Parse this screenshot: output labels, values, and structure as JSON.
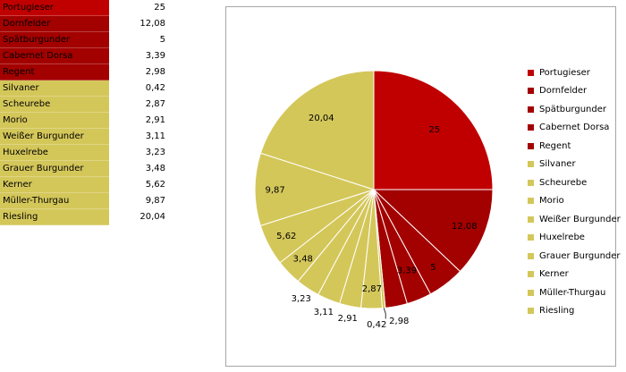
{
  "colors": {
    "red_group": "#c00000",
    "dark_red_group": "#a10000",
    "yellow_group": "#d4c75a",
    "slice_border": "#ffffff",
    "leader_line": "#000000"
  },
  "table": {
    "rows": [
      {
        "name": "Portugieser",
        "value": "25"
      },
      {
        "name": "Dornfelder",
        "value": "12,08"
      },
      {
        "name": "Spätburgunder",
        "value": "5"
      },
      {
        "name": "Cabernet Dorsa",
        "value": "3,39"
      },
      {
        "name": "Regent",
        "value": "2,98"
      },
      {
        "name": "Silvaner",
        "value": "0,42"
      },
      {
        "name": "Scheurebe",
        "value": "2,87"
      },
      {
        "name": "Morio",
        "value": "2,91"
      },
      {
        "name": "Weißer Burgunder",
        "value": "3,11"
      },
      {
        "name": "Huxelrebe",
        "value": "3,23"
      },
      {
        "name": "Grauer Burgunder",
        "value": "3,48"
      },
      {
        "name": "Kerner",
        "value": "5,62"
      },
      {
        "name": "Müller-Thurgau",
        "value": "9,87"
      },
      {
        "name": "Riesling",
        "value": "20,04"
      }
    ]
  },
  "chart_data": {
    "type": "pie",
    "title": "",
    "legend_position": "right",
    "categories": [
      "Portugieser",
      "Dornfelder",
      "Spätburgunder",
      "Cabernet Dorsa",
      "Regent",
      "Silvaner",
      "Scheurebe",
      "Morio",
      "Weißer Burgunder",
      "Huxelrebe",
      "Grauer Burgunder",
      "Kerner",
      "Müller-Thurgau",
      "Riesling"
    ],
    "values": [
      25,
      12.08,
      5,
      3.39,
      2.98,
      0.42,
      2.87,
      2.91,
      3.11,
      3.23,
      3.48,
      5.62,
      9.87,
      20.04
    ],
    "data_labels": [
      "25",
      "12,08",
      "5",
      "3,39",
      "2,98",
      "0,42",
      "2,87",
      "2,91",
      "3,11",
      "3,23",
      "3,48",
      "5,62",
      "9,87",
      "20,04"
    ],
    "colors": [
      "#c00000",
      "#a30000",
      "#a30000",
      "#a30000",
      "#a30000",
      "#d4c75a",
      "#d4c75a",
      "#d4c75a",
      "#d4c75a",
      "#d4c75a",
      "#d4c75a",
      "#d4c75a",
      "#d4c75a",
      "#d4c75a"
    ]
  }
}
